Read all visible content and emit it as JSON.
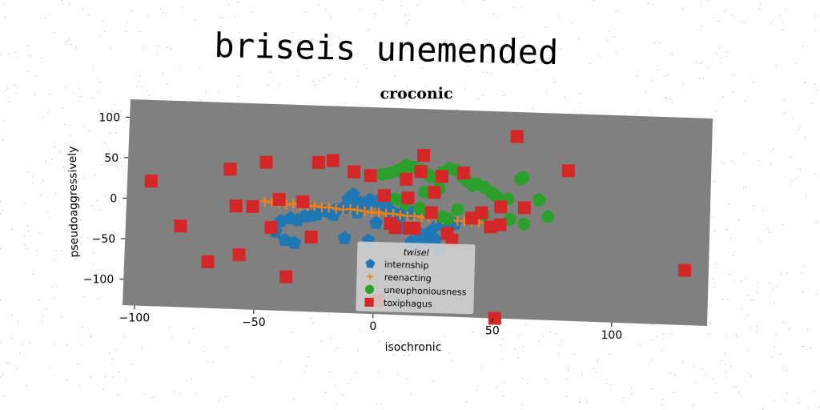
{
  "suptitle": "briseis unemended",
  "chart_data": {
    "type": "scatter",
    "title": "croconic",
    "xlabel": "isochronic",
    "ylabel": "pseudoaggressively",
    "xlim": [
      -105,
      140
    ],
    "ylim": [
      -132,
      122
    ],
    "xticks": [
      -100,
      -50,
      0,
      50,
      100
    ],
    "yticks": [
      -100,
      -50,
      0,
      50,
      100
    ],
    "grid": false,
    "legend": {
      "title": "twisel",
      "placement": "lower-center"
    },
    "series": [
      {
        "name": "internship",
        "marker": "pentagon",
        "color": "#1f77b4",
        "x": [
          -40,
          -36,
          -33,
          -30,
          -27,
          -25,
          -22,
          -19,
          -17,
          -14,
          -12,
          -9,
          -7,
          -5,
          -3,
          0,
          2,
          4,
          6,
          8,
          10,
          12,
          15,
          18,
          20,
          23,
          26,
          30,
          33,
          -13,
          -3,
          -42,
          -38,
          -34,
          -12,
          5,
          15,
          17,
          22,
          27,
          30,
          -18,
          -8,
          0,
          10,
          25,
          -10
        ],
        "y": [
          -22,
          -18,
          -20,
          -15,
          -14,
          -12,
          -8,
          -10,
          -5,
          -3,
          -2,
          0,
          4,
          2,
          8,
          6,
          3,
          -2,
          -5,
          -8,
          -10,
          -4,
          -6,
          -30,
          -35,
          -28,
          -20,
          -15,
          -18,
          -40,
          -42,
          -35,
          -45,
          -48,
          8,
          10,
          -42,
          -45,
          -40,
          -50,
          -30,
          -12,
          -8,
          -20,
          -25,
          -38,
          14
        ]
      },
      {
        "name": "reenacting",
        "marker": "plus",
        "color": "#ff7f0e",
        "x": [
          -47,
          -44,
          -41,
          -38,
          -35,
          -32,
          -29,
          -26,
          -23,
          -20,
          -17,
          -14,
          -11,
          -8,
          -5,
          -2,
          1,
          4,
          7,
          10,
          13,
          16,
          19,
          22,
          25,
          28,
          31,
          34,
          37,
          40,
          43
        ],
        "y": [
          2,
          1,
          0,
          -1,
          0,
          -1,
          -2,
          -2,
          -3,
          -3,
          -4,
          -5,
          -4,
          -5,
          -6,
          -7,
          -7,
          -8,
          -8,
          -9,
          -10,
          -10,
          -11,
          -11,
          -12,
          -13,
          -13,
          -14,
          -14,
          -15,
          -15
        ]
      },
      {
        "name": "uneuphoniousness",
        "marker": "circle",
        "color": "#2ca02c",
        "x": [
          2,
          5,
          8,
          10,
          12,
          15,
          18,
          20,
          22,
          25,
          27,
          30,
          33,
          36,
          38,
          40,
          42,
          45,
          48,
          50,
          52,
          55,
          60,
          61,
          68,
          72,
          62,
          56,
          45,
          28,
          22,
          18,
          12,
          8,
          34,
          20,
          26,
          30
        ],
        "y": [
          40,
          42,
          45,
          48,
          52,
          50,
          47,
          44,
          40,
          38,
          45,
          50,
          48,
          40,
          35,
          30,
          32,
          28,
          22,
          18,
          10,
          15,
          40,
          42,
          15,
          -5,
          -15,
          -10,
          -5,
          -10,
          -5,
          0,
          5,
          10,
          0,
          20,
          25,
          -12
        ],
        "_note": ""
      },
      {
        "name": "toxiphagus",
        "marker": "square",
        "color": "#d62728",
        "x": [
          -95,
          -82,
          -70,
          -62,
          -59,
          -57,
          -52,
          -47,
          -44,
          -41,
          -37,
          -31,
          -27,
          -25,
          -19,
          -10,
          -3,
          3,
          6,
          8,
          12,
          13,
          16,
          18,
          19,
          23,
          24,
          27,
          30,
          32,
          36,
          44,
          48,
          51,
          52,
          58,
          62,
          80,
          130,
          2,
          14,
          40,
          52
        ],
        "y": [
          22,
          -32,
          -75,
          40,
          -5,
          -65,
          -5,
          50,
          -30,
          5,
          -90,
          3,
          -40,
          52,
          55,
          42,
          38,
          14,
          -20,
          -25,
          35,
          12,
          -25,
          45,
          65,
          -5,
          20,
          40,
          -30,
          -38,
          45,
          -3,
          -20,
          -140,
          -17,
          92,
          5,
          52,
          -65,
          -115,
          -25,
          -10,
          5
        ],
        "_note2": ""
      }
    ]
  }
}
